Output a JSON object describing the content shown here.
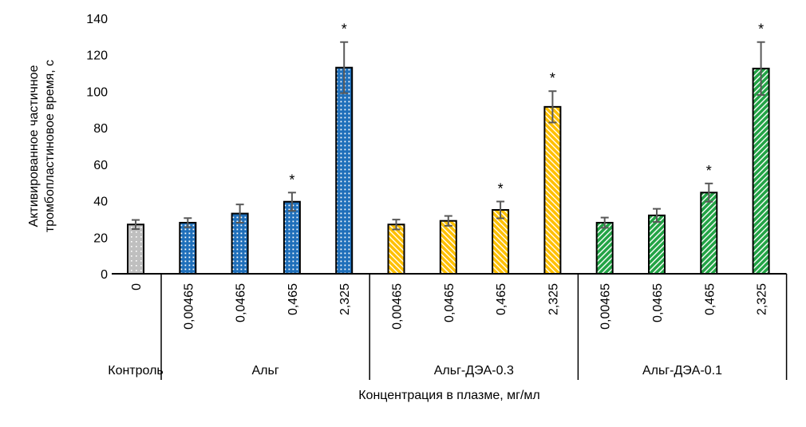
{
  "chart_data": {
    "type": "bar",
    "ylabel_lines": [
      "Активированное частичное",
      "тромбопластиновое время, с"
    ],
    "xlabel": "Концентрация в плазме, мг/мл",
    "ylim": [
      0,
      140
    ],
    "yticks": [
      0,
      20,
      40,
      60,
      80,
      100,
      120,
      140
    ],
    "grid": false,
    "groups": [
      {
        "name": "Контроль",
        "color": "#bfbfbf",
        "pattern": "dots",
        "categories": [
          "0"
        ],
        "values": [
          27
        ],
        "errors": [
          2.5
        ],
        "significant": [
          false
        ]
      },
      {
        "name": "Альг",
        "color": "#1f6fba",
        "pattern": "dots",
        "categories": [
          "0,00465",
          "0,0465",
          "0,465",
          "2,325"
        ],
        "values": [
          28,
          33,
          39.5,
          113
        ],
        "errors": [
          2.5,
          5,
          5,
          14
        ],
        "significant": [
          false,
          false,
          true,
          true
        ]
      },
      {
        "name": "Альг-ДЭА-0.3",
        "color": "#ffc000",
        "pattern": "diagonal-back",
        "categories": [
          "0,00465",
          "0,0465",
          "0,465",
          "2,325"
        ],
        "values": [
          27,
          29,
          35,
          91.5
        ],
        "errors": [
          2.7,
          2.7,
          4.6,
          8.6
        ],
        "significant": [
          false,
          false,
          true,
          true
        ]
      },
      {
        "name": "Альг-ДЭА-0.1",
        "color": "#22a345",
        "pattern": "diagonal-forward",
        "categories": [
          "0,00465",
          "0,0465",
          "0,465",
          "2,325"
        ],
        "values": [
          28,
          32,
          44.5,
          112.5
        ],
        "errors": [
          2.8,
          3.6,
          5,
          14.5
        ],
        "significant": [
          false,
          false,
          true,
          true
        ]
      }
    ],
    "significance_marker": "*"
  }
}
